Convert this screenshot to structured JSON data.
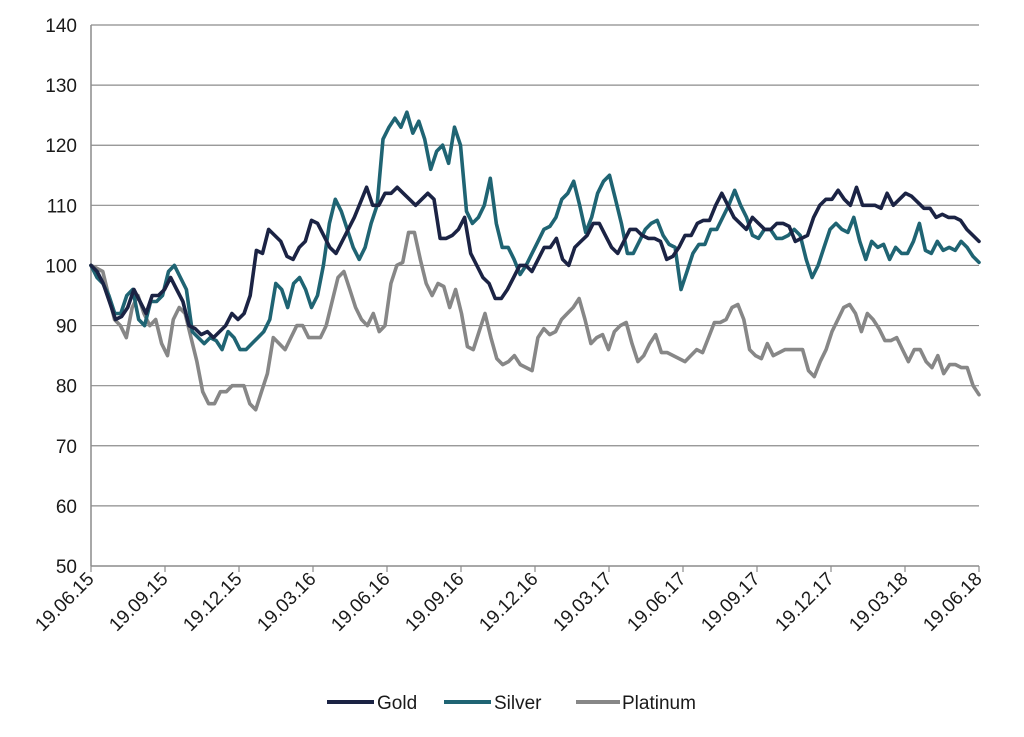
{
  "chart_data": {
    "type": "line",
    "ylim": [
      50,
      140
    ],
    "yticks": [
      50,
      60,
      70,
      80,
      90,
      100,
      110,
      120,
      130,
      140
    ],
    "grid": "horizontal",
    "legend_position": "bottom",
    "x_tick_labels": [
      "19.06.15",
      "19.09.15",
      "19.12.15",
      "19.03.16",
      "19.06.16",
      "19.09.16",
      "19.12.16",
      "19.03.17",
      "19.06.17",
      "19.09.17",
      "19.12.17",
      "19.03.18",
      "19.06.18"
    ],
    "series": [
      {
        "name": "Gold",
        "color": "#1b2344",
        "values": [
          100,
          99,
          97,
          94,
          91,
          91.5,
          93,
          96,
          94,
          92,
          95,
          95,
          96,
          98,
          96,
          94,
          90,
          89.5,
          88.5,
          89,
          88,
          89,
          90,
          92,
          91,
          92,
          95,
          102.5,
          102,
          106,
          105,
          104,
          101.5,
          101,
          103,
          104,
          107.5,
          107,
          105,
          103,
          102,
          104,
          106,
          108,
          110.5,
          113,
          110,
          110,
          112,
          112,
          113,
          112,
          111,
          110,
          111,
          112,
          111,
          104.5,
          104.5,
          105,
          106,
          108,
          102,
          100,
          98,
          97,
          94.5,
          94.5,
          96,
          98,
          100,
          100,
          99,
          101,
          103,
          103,
          104.5,
          101,
          100,
          103,
          104,
          105,
          107,
          107,
          105,
          103,
          102,
          104,
          106,
          106,
          105,
          104.5,
          104.5,
          104,
          101,
          101.5,
          103,
          105,
          105,
          107,
          107.5,
          107.5,
          110,
          112,
          110,
          108,
          107,
          106,
          108,
          107,
          106,
          106,
          107,
          107,
          106.5,
          104,
          104.5,
          105,
          108,
          110,
          111,
          111,
          112.5,
          111,
          110,
          113,
          110,
          110,
          110,
          109.5,
          112,
          110,
          111,
          112,
          111.5,
          110.5,
          109.5,
          109.5,
          108,
          108.5,
          108,
          108,
          107.5,
          106,
          105,
          104
        ]
      },
      {
        "name": "Silver",
        "color": "#1f6473",
        "values": [
          100,
          98,
          97,
          95,
          92,
          92,
          95,
          96,
          91,
          90,
          94,
          94,
          95,
          99,
          100,
          98,
          96,
          89,
          88,
          87,
          88,
          87.5,
          86,
          89,
          88,
          86,
          86,
          87,
          88,
          89,
          91,
          97,
          96,
          93,
          97,
          98,
          96,
          93,
          95,
          100,
          107,
          111,
          109,
          106,
          103,
          101,
          103,
          107,
          110,
          121,
          123,
          124.5,
          123,
          125.5,
          122,
          124,
          121,
          116,
          119,
          120,
          117,
          123,
          120,
          109,
          107,
          108,
          110,
          114.5,
          107,
          103,
          103,
          101,
          98.5,
          100,
          102,
          104,
          106,
          106.5,
          108,
          111,
          112,
          114,
          110,
          105.5,
          108,
          112,
          114,
          115,
          111,
          107,
          102,
          102,
          104,
          106,
          107,
          107.5,
          105,
          103.5,
          103,
          96,
          99,
          102,
          103.5,
          103.5,
          106,
          106,
          108,
          110,
          112.5,
          110,
          108,
          105,
          104.5,
          106,
          106,
          104.5,
          104.5,
          105,
          106,
          105,
          101,
          98,
          100,
          103,
          106,
          107,
          106,
          105.5,
          108,
          104,
          101,
          104,
          103,
          103.5,
          101,
          103,
          102,
          102,
          104,
          107,
          102.5,
          102,
          104,
          102.5,
          103,
          102.5,
          104,
          103,
          101.5,
          100.5
        ]
      },
      {
        "name": "Platinum",
        "color": "#878787",
        "values": [
          100,
          99.5,
          99,
          95,
          91,
          90,
          88,
          93,
          95,
          92,
          90,
          91,
          87,
          85,
          91,
          93,
          92,
          88,
          84,
          79,
          77,
          77,
          79,
          79,
          80,
          80,
          80,
          77,
          76,
          79,
          82,
          88,
          87,
          86,
          88,
          90,
          90,
          88,
          88,
          88,
          90,
          94,
          98,
          99,
          96,
          93,
          91,
          90,
          92,
          89,
          90,
          97,
          100,
          100.5,
          105.5,
          105.5,
          101,
          97,
          95,
          97,
          96.5,
          93,
          96,
          92,
          86.5,
          86,
          89,
          92,
          88,
          84.5,
          83.5,
          84,
          85,
          83.5,
          83,
          82.5,
          88,
          89.5,
          88.5,
          89,
          91,
          92,
          93,
          94.5,
          91,
          87,
          88,
          88.5,
          86,
          89,
          90,
          90.5,
          87,
          84,
          85,
          87,
          88.5,
          85.5,
          85.5,
          85,
          84.5,
          84,
          85,
          86,
          85.5,
          88,
          90.5,
          90.5,
          91,
          93,
          93.5,
          91,
          86,
          85,
          84.5,
          87,
          85,
          85.5,
          86,
          86,
          86,
          86,
          82.5,
          81.5,
          84,
          86,
          89,
          91,
          93,
          93.5,
          92,
          89,
          92,
          91,
          89.5,
          87.5,
          87.5,
          88,
          86,
          84,
          86,
          86,
          84,
          83,
          85,
          82,
          83.5,
          83.5,
          83,
          83,
          80,
          78.5
        ]
      }
    ]
  }
}
